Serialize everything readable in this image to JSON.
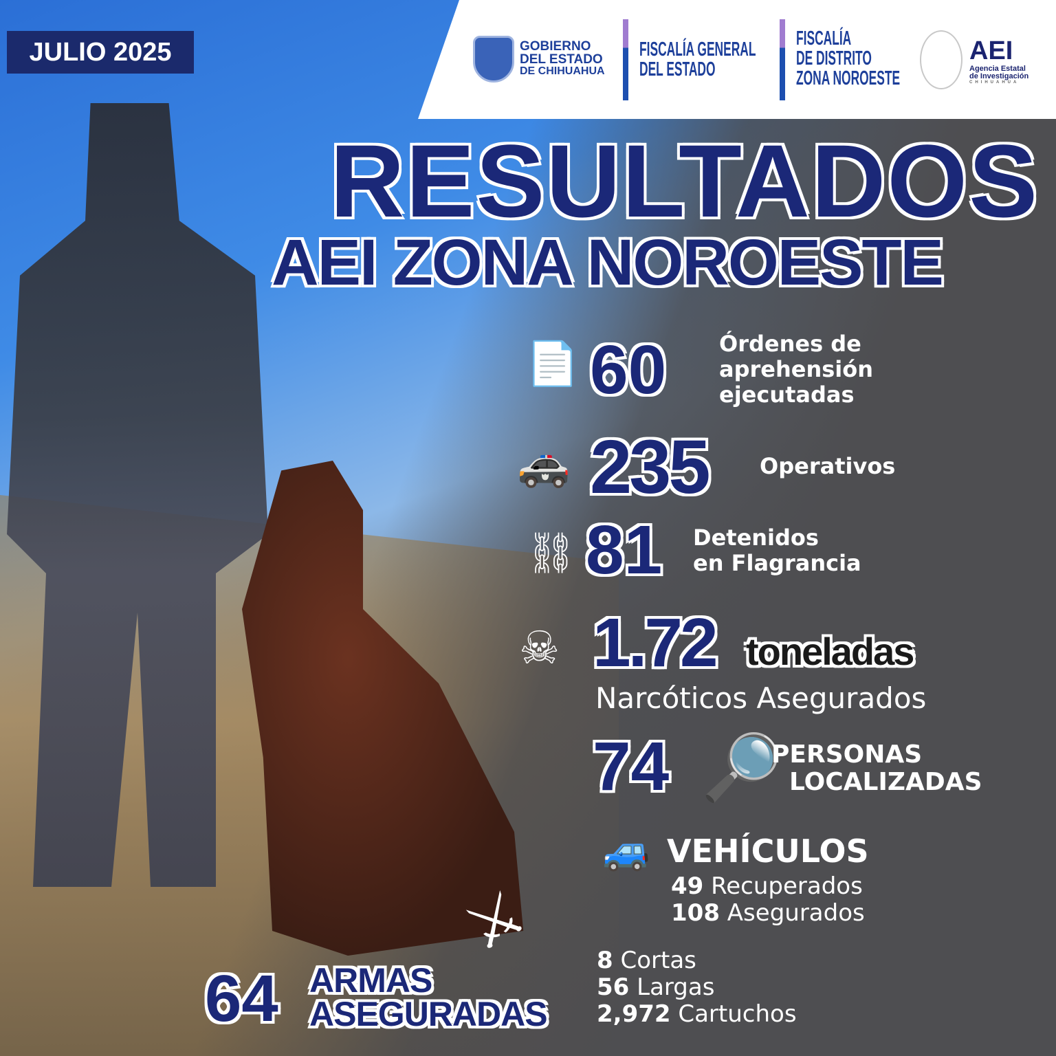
{
  "badge": "JULIO 2025",
  "header": {
    "gobierno": [
      "GOBIERNO",
      "DEL ESTADO",
      "DE CHIHUAHUA"
    ],
    "fiscalia_general": [
      "FISCALÍA GENERAL",
      "DEL ESTADO"
    ],
    "fiscalia_distrito": [
      "FISCALÍA",
      "DE DISTRITO",
      "ZONA NOROESTE"
    ],
    "aei": {
      "title": "AEI",
      "line1": "Agencia Estatal",
      "line2": "de Investigación",
      "line3": "CHIHUAHUA"
    }
  },
  "title": {
    "line1": "RESULTADOS",
    "line2": "AEI ZONA NOROESTE"
  },
  "stats": {
    "ordenes": {
      "icon": "document-icon",
      "value": "60",
      "label": [
        "Órdenes de",
        "aprehensión",
        "ejecutadas"
      ]
    },
    "operativos": {
      "icon": "police-car-icon",
      "value": "235",
      "label": "Operativos"
    },
    "detenidos": {
      "icon": "handcuffs-icon",
      "value": "81",
      "label": [
        "Detenidos",
        "en Flagrancia"
      ]
    },
    "narcoticos": {
      "icon": "skull-icon",
      "value": "1.72",
      "unit": "toneladas",
      "label": "Narcóticos Asegurados"
    },
    "personas": {
      "icon": "magnifier-icon",
      "value": "74",
      "label": [
        "PERSONAS",
        "LOCALIZADAS"
      ]
    },
    "vehiculos": {
      "icon": "car-icon",
      "label": "VEHÍCULOS",
      "items": [
        {
          "n": "49",
          "t": "Recuperados"
        },
        {
          "n": "108",
          "t": "Asegurados"
        }
      ]
    },
    "armas": {
      "icon": "rifle-icon",
      "value": "64",
      "label": [
        "ARMAS",
        "ASEGURADAS"
      ],
      "items": [
        {
          "n": "8",
          "t": "Cortas"
        },
        {
          "n": "56",
          "t": "Largas"
        },
        {
          "n": "2,972",
          "t": "Cartuchos"
        }
      ]
    }
  },
  "colors": {
    "navy": "#1b2878",
    "badge": "#1b2a6c",
    "logo_blue": "#1d3f9a",
    "accent_purple": "#a07cd0"
  }
}
